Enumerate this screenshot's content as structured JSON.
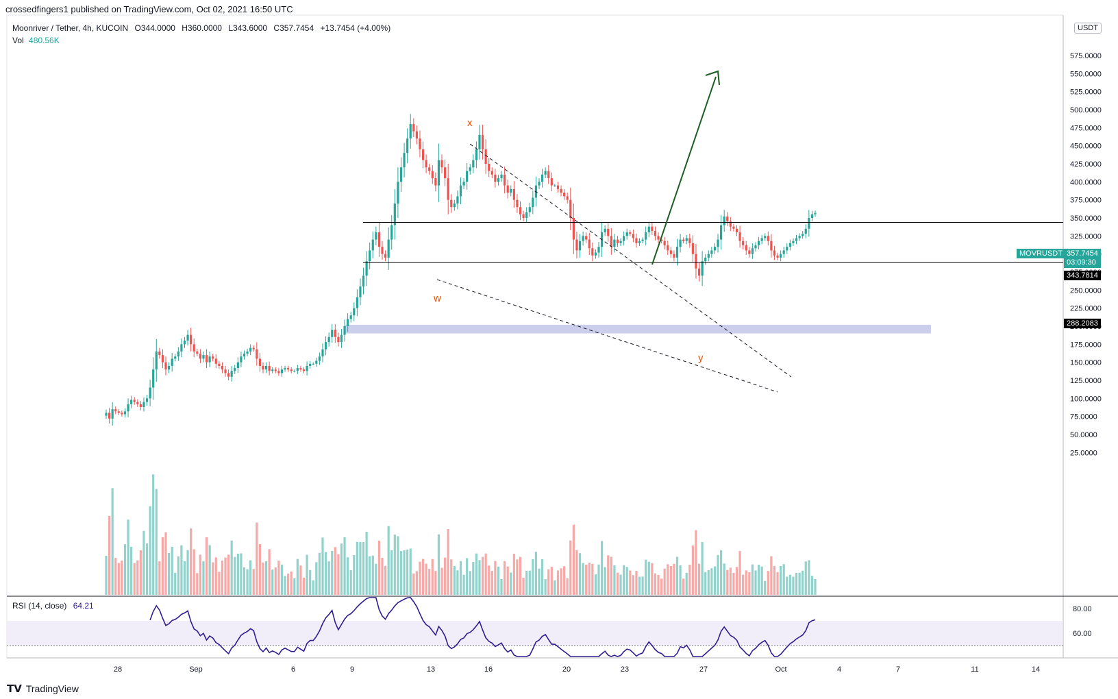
{
  "header": {
    "published": "crossedfingers1 published on TradingView.com, Oct 02, 2021 16:50 UTC"
  },
  "legend": {
    "symbol": "Moonriver / Tether, 4h, KUCOIN",
    "open": "O344.0000",
    "high": "H360.0000",
    "low": "L343.6000",
    "close": "C357.7454",
    "change": "+13.7454 (+4.00%)",
    "vol_label": "Vol",
    "vol_value": "480.56K",
    "rsi_label": "RSI (14, close)",
    "rsi_value": "64.21",
    "up_color": "#26a69a",
    "down_color": "#ef5350"
  },
  "axis": {
    "currency": "USDT",
    "price_ticks": [
      "575.0000",
      "550.0000",
      "525.0000",
      "500.0000",
      "475.0000",
      "450.0000",
      "425.0000",
      "400.0000",
      "375.0000",
      "350.0000",
      "325.0000",
      "300.0000",
      "275.0000",
      "250.0000",
      "225.0000",
      "200.0000",
      "175.0000",
      "150.0000",
      "125.0000",
      "100.0000",
      "75.0000",
      "50.0000",
      "25.0000"
    ],
    "rsi_ticks": [
      "80.00",
      "60.00"
    ],
    "date_ticks": [
      "28",
      "Sep",
      "6",
      "9",
      "13",
      "16",
      "20",
      "23",
      "27",
      "Oct",
      "4",
      "7",
      "11",
      "14"
    ]
  },
  "tags": {
    "symbol_tag": "MOVRUSDT",
    "last_price": "357.7454",
    "countdown": "03:09:30",
    "level_high": "343.7814",
    "level_low": "288.2083"
  },
  "annotations": {
    "w": "w",
    "x": "x",
    "y": "y"
  },
  "footer": {
    "brand": "TradingView"
  },
  "chart_data": {
    "type": "candlestick",
    "symbol": "Moonriver / Tether",
    "timeframe": "4h",
    "exchange": "KUCOIN",
    "price_axis": [
      25,
      575
    ],
    "horizontal_levels": [
      343.7814,
      288.2083
    ],
    "support_zone": [
      190,
      202
    ],
    "last_close": 357.7454,
    "closes": [
      80,
      72,
      85,
      82,
      80,
      78,
      82,
      92,
      98,
      95,
      92,
      88,
      95,
      100,
      115,
      140,
      165,
      160,
      150,
      140,
      145,
      155,
      158,
      165,
      175,
      180,
      188,
      175,
      165,
      162,
      155,
      160,
      150,
      158,
      155,
      148,
      145,
      140,
      135,
      130,
      138,
      142,
      150,
      158,
      162,
      165,
      170,
      168,
      155,
      145,
      140,
      145,
      138,
      140,
      138,
      135,
      140,
      142,
      140,
      138,
      138,
      142,
      140,
      138,
      145,
      148,
      148,
      152,
      158,
      168,
      178,
      185,
      195,
      185,
      178,
      188,
      200,
      210,
      215,
      225,
      240,
      255,
      270,
      290,
      305,
      320,
      330,
      310,
      300,
      295,
      320,
      340,
      370,
      400,
      420,
      440,
      460,
      480,
      470,
      460,
      445,
      430,
      420,
      415,
      405,
      395,
      430,
      420,
      405,
      375,
      365,
      370,
      380,
      395,
      400,
      415,
      420,
      430,
      445,
      465,
      445,
      425,
      415,
      410,
      400,
      405,
      410,
      395,
      385,
      390,
      375,
      365,
      355,
      350,
      358,
      365,
      378,
      395,
      400,
      410,
      415,
      405,
      395,
      395,
      390,
      385,
      380,
      375,
      350,
      320,
      305,
      318,
      325,
      320,
      308,
      298,
      302,
      310,
      330,
      335,
      325,
      310,
      320,
      315,
      318,
      325,
      330,
      328,
      322,
      315,
      318,
      320,
      330,
      338,
      332,
      325,
      320,
      318,
      312,
      305,
      300,
      295,
      310,
      320,
      318,
      322,
      315,
      300,
      280,
      270,
      290,
      295,
      300,
      305,
      310,
      320,
      340,
      352,
      345,
      338,
      335,
      330,
      318,
      312,
      305,
      300,
      308,
      312,
      318,
      322,
      325,
      318,
      305,
      298,
      295,
      300,
      305,
      310,
      315,
      318,
      322,
      325,
      328,
      335,
      350,
      355,
      357
    ]
  }
}
